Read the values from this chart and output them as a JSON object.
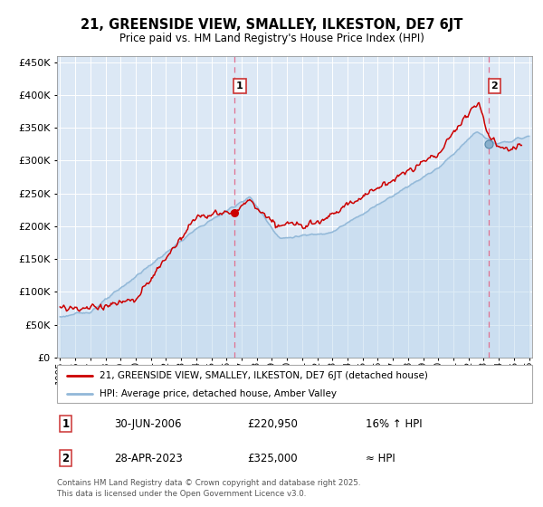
{
  "title": "21, GREENSIDE VIEW, SMALLEY, ILKESTON, DE7 6JT",
  "subtitle": "Price paid vs. HM Land Registry's House Price Index (HPI)",
  "legend_line1": "21, GREENSIDE VIEW, SMALLEY, ILKESTON, DE7 6JT (detached house)",
  "legend_line2": "HPI: Average price, detached house, Amber Valley",
  "annotation1_date": "30-JUN-2006",
  "annotation1_price": "£220,950",
  "annotation1_hpi": "16% ↑ HPI",
  "annotation2_date": "28-APR-2023",
  "annotation2_price": "£325,000",
  "annotation2_hpi": "≈ HPI",
  "footer": "Contains HM Land Registry data © Crown copyright and database right 2025.\nThis data is licensed under the Open Government Licence v3.0.",
  "sale1_x": 2006.5,
  "sale1_y": 220950,
  "sale2_x": 2023.33,
  "sale2_y": 325000,
  "hpi_color": "#92b8d8",
  "hpi_fill_color": "#dce8f5",
  "price_color": "#cc0000",
  "vline_color": "#e07090",
  "plot_bg": "#dce8f5",
  "ylim": [
    0,
    460000
  ],
  "xlim_start": 1994.8,
  "xlim_end": 2026.2
}
